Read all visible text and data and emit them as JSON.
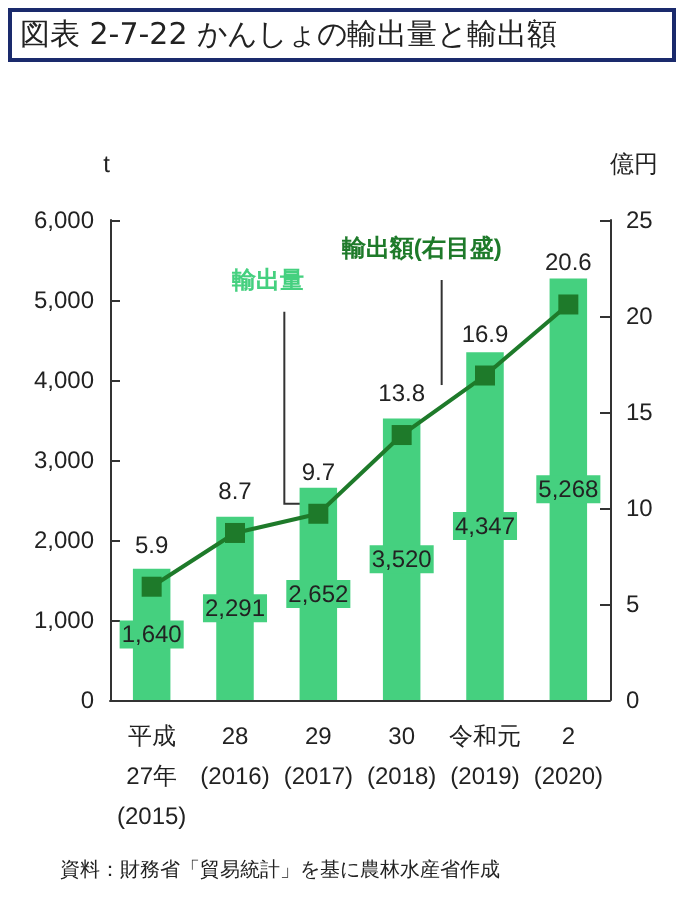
{
  "chart_data": {
    "type": "bar",
    "title": "図表 2-7-22 かんしょの輸出量と輸出額",
    "ylabel": "t",
    "y2label": "億円",
    "categories": [
      "平成\n27年\n(2015)",
      "28\n(2016)",
      "29\n(2017)",
      "30\n(2018)",
      "令和元\n(2019)",
      "2\n(2020)"
    ],
    "series": [
      {
        "name": "輸出量",
        "color": "#45d07f",
        "values": [
          1640,
          2291,
          2652,
          3520,
          4347,
          5268
        ],
        "value_labels": [
          "1,640",
          "2,291",
          "2,652",
          "3,520",
          "4,347",
          "5,268"
        ]
      },
      {
        "name": "輸出額(右目盛)",
        "type": "line",
        "axis": "y2",
        "color": "#1e7a2a",
        "values": [
          5.9,
          8.7,
          9.7,
          13.8,
          16.9,
          20.6
        ],
        "value_labels": [
          "5.9",
          "8.7",
          "9.7",
          "13.8",
          "16.9",
          "20.6"
        ]
      }
    ],
    "ylim": [
      0,
      6000
    ],
    "yticks": [
      0,
      {
        "value": 1000,
        "label": "1,000"
      },
      {
        "value": 2000,
        "label": "2,000"
      },
      {
        "value": 3000,
        "label": "3,000"
      },
      {
        "value": 4000,
        "label": "4,000"
      },
      {
        "value": 5000,
        "label": "5,000"
      },
      {
        "value": 6000,
        "label": "6,000"
      }
    ],
    "y2lim": [
      0,
      25
    ],
    "y2ticks": [
      0,
      5,
      10,
      15,
      20,
      25
    ],
    "legend": false,
    "grid": false,
    "marker": "square",
    "line_style": "solid",
    "annotations": [
      "資料：財務省「貿易統計」を基に農林水産省作成"
    ]
  }
}
